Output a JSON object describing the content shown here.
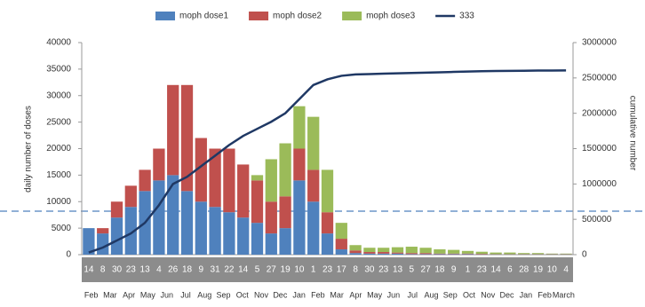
{
  "chart_data": {
    "type": "bar_line",
    "y_label": "daily number of doses",
    "y2_label": "cumulative number",
    "categories": [
      "14",
      "8",
      "30",
      "23",
      "13",
      "4",
      "26",
      "18",
      "9",
      "31",
      "22",
      "14",
      "5",
      "27",
      "19",
      "10",
      "1",
      "23",
      "17",
      "8",
      "30",
      "23",
      "13",
      "5",
      "27",
      "18",
      "9",
      "1",
      "23",
      "14",
      "6",
      "28",
      "19",
      "10",
      "4"
    ],
    "month_labels": [
      "Feb",
      "Mar",
      "Apr",
      "May",
      "Jun",
      "Jul",
      "Aug",
      "Sep",
      "Oct",
      "Nov",
      "Dec",
      "Jan",
      "Feb",
      "Mar",
      "Apr",
      "May",
      "Jun",
      "Jul",
      "Aug",
      "Sep",
      "Oct",
      "Nov",
      "Dec",
      "Jan",
      "Feb",
      "March"
    ],
    "series": [
      {
        "name": "moph dose1",
        "color": "#4f81bd",
        "values": [
          5000,
          4000,
          7000,
          9000,
          12000,
          14000,
          15000,
          12000,
          10000,
          9000,
          8000,
          7000,
          6000,
          4000,
          5000,
          14000,
          10000,
          4000,
          1000,
          300,
          200,
          200,
          200,
          100,
          100,
          100,
          100,
          100,
          50,
          50,
          50,
          50,
          50,
          50,
          50
        ]
      },
      {
        "name": "moph dose2",
        "color": "#c0504d",
        "values": [
          0,
          1000,
          3000,
          4000,
          4000,
          6000,
          17000,
          20000,
          12000,
          11000,
          12000,
          10000,
          8000,
          6000,
          6000,
          6000,
          6000,
          4000,
          2000,
          500,
          300,
          300,
          200,
          200,
          200,
          100,
          100,
          100,
          100,
          50,
          50,
          50,
          50,
          50,
          50
        ]
      },
      {
        "name": "moph dose3",
        "color": "#9bbb59",
        "values": [
          0,
          0,
          0,
          0,
          0,
          0,
          0,
          0,
          0,
          0,
          0,
          0,
          1000,
          8000,
          10000,
          8000,
          10000,
          8000,
          3000,
          1000,
          800,
          800,
          1000,
          1200,
          1000,
          800,
          700,
          500,
          400,
          300,
          300,
          200,
          200,
          100,
          100
        ]
      },
      {
        "name": "333",
        "color": "#1f3864",
        "axis": "y2",
        "values": [
          30000,
          100000,
          200000,
          300000,
          450000,
          700000,
          1000000,
          1100000,
          1250000,
          1400000,
          1550000,
          1680000,
          1780000,
          1880000,
          2000000,
          2200000,
          2400000,
          2480000,
          2530000,
          2550000,
          2555000,
          2560000,
          2565000,
          2570000,
          2575000,
          2580000,
          2585000,
          2590000,
          2595000,
          2598000,
          2600000,
          2602000,
          2604000,
          2605000,
          2606000
        ]
      }
    ],
    "ylim": [
      0,
      40000
    ],
    "yticks": [
      0,
      5000,
      10000,
      15000,
      20000,
      25000,
      30000,
      35000,
      40000
    ],
    "y2lim": [
      0,
      3000000
    ],
    "y2ticks": [
      0,
      500000,
      1000000,
      1500000,
      2000000,
      2500000,
      3000000
    ]
  }
}
